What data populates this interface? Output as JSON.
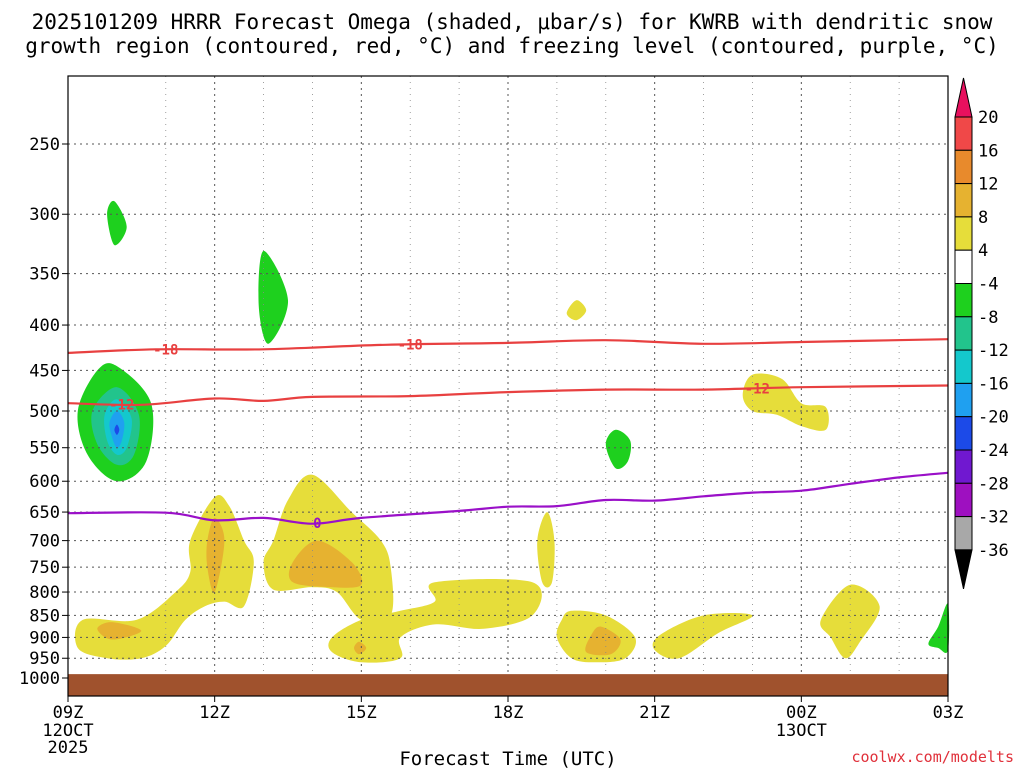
{
  "title_line1": "2025101209 HRRR Forecast Omega (shaded, μbar/s) for KWRB with dendritic snow",
  "title_line2": "growth region (contoured, red, °C) and freezing level (contoured, purple, °C)",
  "credit": "coolwx.com/modelts",
  "chart_data": {
    "type": "time-height",
    "xlabel": "Forecast Time (UTC)",
    "x_ticks": [
      "09Z",
      "12Z",
      "15Z",
      "18Z",
      "21Z",
      "00Z",
      "03Z"
    ],
    "x_tick_hours": [
      0,
      3,
      6,
      9,
      12,
      15,
      18
    ],
    "x_date_labels": [
      {
        "hour": 0,
        "lines": [
          "12OCT",
          "2025"
        ]
      },
      {
        "hour": 15,
        "lines": [
          "13OCT"
        ]
      }
    ],
    "xlim": [
      0,
      18
    ],
    "ylabel": "",
    "y_ticks": [
      250,
      300,
      350,
      400,
      450,
      500,
      550,
      600,
      650,
      700,
      750,
      800,
      850,
      900,
      950,
      1000
    ],
    "ylim": [
      200,
      1025
    ],
    "y_scale": "log-pressure",
    "surface_pressure": 990,
    "colorbar": {
      "levels": [
        20,
        16,
        12,
        8,
        4,
        -4,
        -8,
        -12,
        -16,
        -20,
        -24,
        -28,
        -32,
        -36
      ],
      "colors": [
        "#e8105e",
        "#f04848",
        "#e88a2c",
        "#e6b230",
        "#e6dd3a",
        "#ffffff",
        "#1ed01e",
        "#22c48c",
        "#14c8cc",
        "#1fa0f0",
        "#1c4ae8",
        "#7018d0",
        "#9e10c0",
        "#a8a8a8",
        "#000000"
      ]
    },
    "contours": [
      {
        "name": "dgz-minus18",
        "value": -18,
        "label": "-18",
        "color": "#e84040",
        "points": [
          [
            0,
            430
          ],
          [
            1.8,
            426
          ],
          [
            4,
            426
          ],
          [
            6.5,
            421
          ],
          [
            9,
            419
          ],
          [
            11,
            416
          ],
          [
            13,
            420
          ],
          [
            15,
            418
          ],
          [
            18,
            415
          ]
        ],
        "label_hours": [
          2,
          7
        ]
      },
      {
        "name": "dgz-minus12",
        "value": -12,
        "label": "-12",
        "color": "#e84040",
        "points": [
          [
            0,
            490
          ],
          [
            1.5,
            492
          ],
          [
            3,
            484
          ],
          [
            4,
            487
          ],
          [
            5,
            482
          ],
          [
            7,
            481
          ],
          [
            9,
            476
          ],
          [
            11,
            473
          ],
          [
            13,
            473
          ],
          [
            15,
            470
          ],
          [
            18,
            468
          ]
        ],
        "label_hours": [
          1.1,
          14.1
        ]
      },
      {
        "name": "freezing-level",
        "value": 0,
        "label": "0",
        "color": "#9a10c8",
        "points": [
          [
            0,
            652
          ],
          [
            2,
            651
          ],
          [
            3,
            664
          ],
          [
            4,
            660
          ],
          [
            5,
            670
          ],
          [
            6,
            660
          ],
          [
            8,
            648
          ],
          [
            9,
            641
          ],
          [
            10,
            640
          ],
          [
            11,
            630
          ],
          [
            12,
            631
          ],
          [
            13,
            624
          ],
          [
            14,
            618
          ],
          [
            15,
            615
          ],
          [
            16,
            604
          ],
          [
            17,
            594
          ],
          [
            18,
            587
          ]
        ],
        "label_hours": [
          5.1
        ]
      }
    ],
    "omega_regions": [
      {
        "name": "green-cell-1",
        "value": -4,
        "fill": "#1ed01e",
        "points": [
          [
            0.95,
            290
          ],
          [
            1.2,
            310
          ],
          [
            0.95,
            325
          ],
          [
            0.8,
            300
          ]
        ]
      },
      {
        "name": "green-cell-2",
        "value": -4,
        "fill": "#1ed01e",
        "points": [
          [
            4,
            330
          ],
          [
            4.5,
            375
          ],
          [
            4.1,
            420
          ],
          [
            3.9,
            380
          ]
        ]
      },
      {
        "name": "green-cell-3",
        "value": -4,
        "fill": "#1ed01e",
        "points": [
          [
            1,
            445
          ],
          [
            1.7,
            490
          ],
          [
            1.6,
            570
          ],
          [
            1,
            600
          ],
          [
            0.4,
            560
          ],
          [
            0.2,
            500
          ],
          [
            0.6,
            450
          ]
        ]
      },
      {
        "name": "teal-cell-3",
        "value": -8,
        "fill": "#22c48c",
        "points": [
          [
            1,
            470
          ],
          [
            1.45,
            505
          ],
          [
            1.35,
            560
          ],
          [
            1,
            575
          ],
          [
            0.6,
            545
          ],
          [
            0.5,
            500
          ]
        ]
      },
      {
        "name": "cyan-cell-3",
        "value": -12,
        "fill": "#14c8cc",
        "points": [
          [
            1,
            485
          ],
          [
            1.3,
            510
          ],
          [
            1.2,
            550
          ],
          [
            1,
            560
          ],
          [
            0.8,
            540
          ],
          [
            0.75,
            505
          ]
        ]
      },
      {
        "name": "blue-cell-3",
        "value": -16,
        "fill": "#1fa0f0",
        "points": [
          [
            1,
            500
          ],
          [
            1.15,
            515
          ],
          [
            1.1,
            540
          ],
          [
            1,
            550
          ],
          [
            0.9,
            535
          ],
          [
            0.85,
            515
          ]
        ]
      },
      {
        "name": "blue-core-3",
        "value": -20,
        "fill": "#1c4ae8",
        "points": [
          [
            1,
            518
          ],
          [
            1.05,
            525
          ],
          [
            1,
            532
          ],
          [
            0.95,
            525
          ]
        ]
      },
      {
        "name": "green-cell-4",
        "value": -4,
        "fill": "#1ed01e",
        "points": [
          [
            11.2,
            525
          ],
          [
            11.5,
            540
          ],
          [
            11.45,
            570
          ],
          [
            11.2,
            580
          ],
          [
            11,
            545
          ]
        ]
      },
      {
        "name": "green-cell-5",
        "value": -4,
        "fill": "#1ed01e",
        "points": [
          [
            18,
            825
          ],
          [
            18,
            930
          ],
          [
            17.8,
            925
          ],
          [
            17.6,
            915
          ],
          [
            17.8,
            875
          ]
        ]
      },
      {
        "name": "yellow-cell-1",
        "value": 4,
        "fill": "#e6dd3a",
        "points": [
          [
            10.4,
            375
          ],
          [
            10.6,
            385
          ],
          [
            10.4,
            395
          ],
          [
            10.2,
            388
          ]
        ]
      },
      {
        "name": "yellow-cell-2",
        "value": 4,
        "fill": "#e6dd3a",
        "points": [
          [
            14,
            455
          ],
          [
            14.6,
            460
          ],
          [
            15,
            490
          ],
          [
            15.5,
            495
          ],
          [
            15.5,
            525
          ],
          [
            15,
            520
          ],
          [
            14.5,
            505
          ],
          [
            14,
            500
          ],
          [
            13.8,
            480
          ]
        ]
      },
      {
        "name": "yellow-cell-3",
        "value": 4,
        "fill": "#e6dd3a",
        "points": [
          [
            3,
            625
          ],
          [
            3.3,
            640
          ],
          [
            3.6,
            700
          ],
          [
            3.8,
            740
          ],
          [
            3.6,
            830
          ],
          [
            3.2,
            820
          ],
          [
            2.8,
            830
          ],
          [
            2.4,
            860
          ],
          [
            2,
            920
          ],
          [
            1.5,
            950
          ],
          [
            0.8,
            950
          ],
          [
            0.2,
            925
          ],
          [
            0.3,
            860
          ],
          [
            1.4,
            860
          ],
          [
            2.2,
            800
          ],
          [
            2.5,
            760
          ],
          [
            2.5,
            700
          ]
        ]
      },
      {
        "name": "orange-cell-3",
        "value": 8,
        "fill": "#e6b230",
        "points": [
          [
            0.9,
            865
          ],
          [
            1.5,
            885
          ],
          [
            0.9,
            905
          ],
          [
            0.6,
            880
          ]
        ]
      },
      {
        "name": "orange-cell-3b",
        "value": 8,
        "fill": "#e6b230",
        "points": [
          [
            3,
            660
          ],
          [
            3.2,
            700
          ],
          [
            3,
            800
          ],
          [
            2.85,
            750
          ],
          [
            2.85,
            700
          ]
        ]
      },
      {
        "name": "yellow-cell-4",
        "value": 4,
        "fill": "#e6dd3a",
        "points": [
          [
            5,
            590
          ],
          [
            5.8,
            650
          ],
          [
            6.4,
            700
          ],
          [
            6.6,
            750
          ],
          [
            6.6,
            850
          ],
          [
            6,
            860
          ],
          [
            5.5,
            800
          ],
          [
            5,
            790
          ],
          [
            4.2,
            795
          ],
          [
            4,
            740
          ],
          [
            4.2,
            700
          ],
          [
            4.5,
            630
          ]
        ]
      },
      {
        "name": "orange-cell-4",
        "value": 8,
        "fill": "#e6b230",
        "points": [
          [
            5.1,
            700
          ],
          [
            5.8,
            740
          ],
          [
            6,
            785
          ],
          [
            5.4,
            790
          ],
          [
            4.6,
            780
          ],
          [
            4.6,
            740
          ]
        ]
      },
      {
        "name": "yellow-cell-5",
        "value": 4,
        "fill": "#e6dd3a",
        "points": [
          [
            7.5,
            780
          ],
          [
            9.5,
            780
          ],
          [
            9.5,
            850
          ],
          [
            8.5,
            880
          ],
          [
            7.5,
            870
          ],
          [
            6.8,
            900
          ],
          [
            6.8,
            950
          ],
          [
            6,
            960
          ],
          [
            5.4,
            935
          ],
          [
            5.4,
            900
          ],
          [
            6,
            860
          ],
          [
            6.8,
            840
          ],
          [
            7.5,
            820
          ]
        ]
      },
      {
        "name": "orange-cell-5",
        "value": 8,
        "fill": "#e6b230",
        "points": [
          [
            5.95,
            910
          ],
          [
            6.1,
            925
          ],
          [
            5.95,
            940
          ],
          [
            5.85,
            925
          ]
        ]
      },
      {
        "name": "yellow-cell-6",
        "value": 4,
        "fill": "#e6dd3a",
        "points": [
          [
            9.8,
            650
          ],
          [
            9.95,
            700
          ],
          [
            9.9,
            780
          ],
          [
            9.7,
            780
          ],
          [
            9.6,
            700
          ]
        ]
      },
      {
        "name": "yellow-cell-7",
        "value": 4,
        "fill": "#e6dd3a",
        "points": [
          [
            10.3,
            840
          ],
          [
            11,
            850
          ],
          [
            11.6,
            900
          ],
          [
            11.4,
            950
          ],
          [
            10.8,
            960
          ],
          [
            10.3,
            950
          ],
          [
            10,
            900
          ],
          [
            10.1,
            860
          ]
        ]
      },
      {
        "name": "orange-cell-7",
        "value": 8,
        "fill": "#e6b230",
        "points": [
          [
            10.9,
            875
          ],
          [
            11.3,
            905
          ],
          [
            11.1,
            940
          ],
          [
            10.6,
            935
          ],
          [
            10.7,
            895
          ]
        ]
      },
      {
        "name": "yellow-cell-8",
        "value": 4,
        "fill": "#e6dd3a",
        "points": [
          [
            13,
            850
          ],
          [
            14,
            850
          ],
          [
            13.3,
            890
          ],
          [
            12.5,
            950
          ],
          [
            12,
            930
          ],
          [
            12.1,
            895
          ]
        ]
      },
      {
        "name": "yellow-cell-9",
        "value": 4,
        "fill": "#e6dd3a",
        "points": [
          [
            16,
            785
          ],
          [
            16.6,
            830
          ],
          [
            16.2,
            910
          ],
          [
            15.9,
            950
          ],
          [
            15.6,
            900
          ],
          [
            15.4,
            860
          ]
        ]
      }
    ]
  }
}
